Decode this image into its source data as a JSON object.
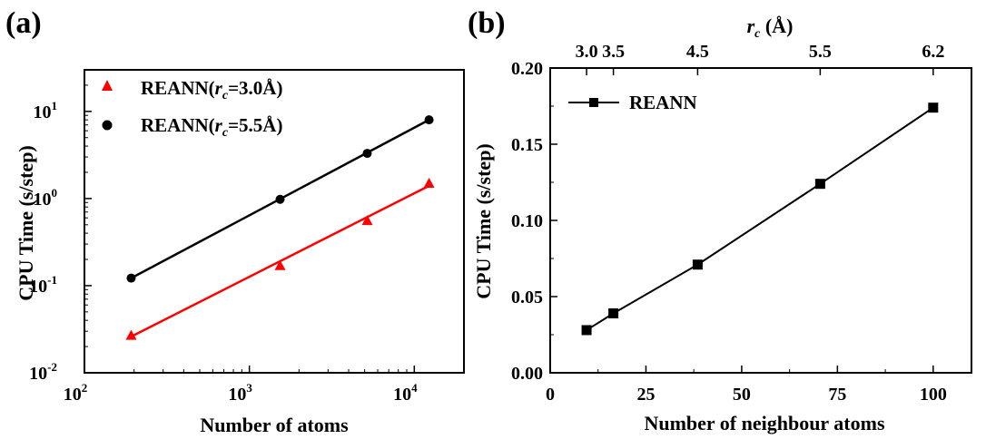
{
  "chart_data": [
    {
      "panel_label": "(a)",
      "type": "scatter",
      "xlabel": "Number of atoms",
      "ylabel": "CPU Time (s/step)",
      "xscale": "log",
      "yscale": "log",
      "xlim": [
        100,
        20000
      ],
      "ylim": [
        0.01,
        30
      ],
      "x_ticks": [
        {
          "value": 100,
          "base": "10",
          "exp": "2"
        },
        {
          "value": 1000,
          "base": "10",
          "exp": "3"
        },
        {
          "value": 10000,
          "base": "10",
          "exp": "4"
        }
      ],
      "y_ticks": [
        {
          "value": 0.01,
          "base": "10",
          "exp": "-2"
        },
        {
          "value": 0.1,
          "base": "10",
          "exp": "-1"
        },
        {
          "value": 1,
          "base": "10",
          "exp": "0"
        },
        {
          "value": 10,
          "base": "10",
          "exp": "1"
        }
      ],
      "legend_position": "top-left",
      "series": [
        {
          "name_prefix": "REANN(",
          "name_var": "r",
          "name_sub": "c",
          "name_suffix": "=3.0Å)",
          "color": "#ff0000",
          "marker": "triangle",
          "x": [
            192,
            1536,
            5184,
            12288
          ],
          "y": [
            0.027,
            0.17,
            0.56,
            1.5
          ],
          "fit": {
            "x": [
              192,
              12288
            ],
            "y": [
              0.026,
              1.4
            ]
          }
        },
        {
          "name_prefix": "REANN(",
          "name_var": "r",
          "name_sub": "c",
          "name_suffix": "=5.5Å)",
          "color": "#000000",
          "marker": "circle",
          "x": [
            192,
            1536,
            5184,
            12288
          ],
          "y": [
            0.122,
            0.98,
            3.3,
            8.0
          ],
          "fit": {
            "x": [
              192,
              12288
            ],
            "y": [
              0.122,
              8.0
            ]
          }
        }
      ]
    },
    {
      "panel_label": "(b)",
      "type": "line",
      "xlabel": "Number of neighbour atoms",
      "ylabel": "CPU Time (s/step)",
      "xlim": [
        0,
        110
      ],
      "ylim": [
        0,
        0.2
      ],
      "x_ticks": [
        "0",
        "25",
        "50",
        "75",
        "100"
      ],
      "y_ticks": [
        "0.00",
        "0.05",
        "0.10",
        "0.15",
        "0.20"
      ],
      "top_axis": {
        "label_var": "r",
        "label_sub": "c",
        "label_suffix": " (Å)",
        "ticks": [
          {
            "x": 9.5,
            "label": "3.0"
          },
          {
            "x": 16.5,
            "label": "3.5"
          },
          {
            "x": 38.5,
            "label": "4.5"
          },
          {
            "x": 70.5,
            "label": "5.5"
          },
          {
            "x": 100,
            "label": "6.2"
          }
        ]
      },
      "legend_position": "top-left",
      "series": [
        {
          "name": "REANN",
          "color": "#000000",
          "marker": "square",
          "x": [
            9.5,
            16.5,
            38.5,
            70.5,
            100
          ],
          "y": [
            0.028,
            0.039,
            0.071,
            0.124,
            0.174
          ]
        }
      ]
    }
  ]
}
